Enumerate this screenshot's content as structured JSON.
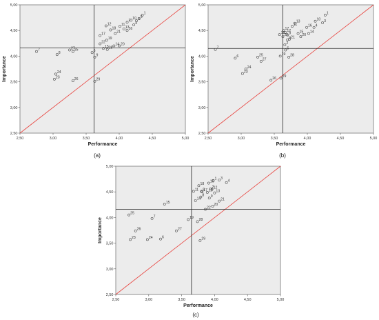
{
  "chart_data": [
    {
      "type": "scatter",
      "caption": "(a)",
      "xlabel": "Performance",
      "ylabel": "Importance",
      "xlim": [
        2.5,
        5.0
      ],
      "ylim": [
        2.5,
        5.0
      ],
      "x_ticks": [
        "2,50",
        "3,00",
        "3,50",
        "4,00",
        "4,50",
        "5,00"
      ],
      "y_ticks": [
        "2,50",
        "3,00",
        "3,50",
        "4,00",
        "4,50",
        "5,00"
      ],
      "crosshair": {
        "x": 3.62,
        "y": 4.16
      },
      "diagonal": true,
      "points": [
        {
          "label": "1",
          "x": 4.35,
          "y": 4.8
        },
        {
          "label": "2",
          "x": 4.12,
          "y": 4.66
        },
        {
          "label": "3",
          "x": 4.26,
          "y": 4.69
        },
        {
          "label": "4",
          "x": 4.22,
          "y": 4.61
        },
        {
          "label": "5",
          "x": 4.3,
          "y": 4.73
        },
        {
          "label": "6",
          "x": 3.59,
          "y": 4.07
        },
        {
          "label": "7",
          "x": 2.75,
          "y": 4.09
        },
        {
          "label": "8",
          "x": 3.06,
          "y": 4.03
        },
        {
          "label": "9",
          "x": 3.63,
          "y": 3.98
        },
        {
          "label": "10",
          "x": 4.18,
          "y": 4.7
        },
        {
          "label": "11",
          "x": 4.01,
          "y": 4.58
        },
        {
          "label": "12",
          "x": 3.8,
          "y": 4.59
        },
        {
          "label": "13",
          "x": 4.07,
          "y": 4.53
        },
        {
          "label": "14",
          "x": 3.92,
          "y": 4.2
        },
        {
          "label": "15",
          "x": 3.76,
          "y": 4.15
        },
        {
          "label": "16",
          "x": 4.12,
          "y": 4.5
        },
        {
          "label": "17",
          "x": 3.71,
          "y": 4.4
        },
        {
          "label": "18",
          "x": 3.87,
          "y": 4.51
        },
        {
          "label": "19",
          "x": 3.81,
          "y": 4.31
        },
        {
          "label": "20",
          "x": 4.0,
          "y": 4.2
        },
        {
          "label": "21",
          "x": 3.94,
          "y": 4.44
        },
        {
          "label": "22",
          "x": 3.71,
          "y": 4.24
        },
        {
          "label": "23",
          "x": 3.02,
          "y": 3.55
        },
        {
          "label": "24",
          "x": 3.04,
          "y": 3.65
        },
        {
          "label": "25",
          "x": 3.3,
          "y": 4.09
        },
        {
          "label": "26",
          "x": 3.3,
          "y": 3.52
        },
        {
          "label": "27",
          "x": 3.25,
          "y": 4.12
        },
        {
          "label": "28",
          "x": 3.82,
          "y": 4.13
        },
        {
          "label": "29",
          "x": 3.63,
          "y": 3.51
        }
      ]
    },
    {
      "type": "scatter",
      "caption": "(b)",
      "xlabel": "Performance",
      "ylabel": "Importance",
      "xlim": [
        2.5,
        5.0
      ],
      "ylim": [
        2.5,
        5.0
      ],
      "x_ticks": [
        "2,50",
        "3,00",
        "3,50",
        "4,00",
        "4,50",
        "5,00"
      ],
      "y_ticks": [
        "2,50",
        "3,00",
        "3,50",
        "4,00",
        "4,50",
        "5,00"
      ],
      "crosshair": {
        "x": 3.63,
        "y": 4.15
      },
      "diagonal": true,
      "points": [
        {
          "label": "1",
          "x": 4.27,
          "y": 4.8
        },
        {
          "label": "2",
          "x": 3.66,
          "y": 4.22
        },
        {
          "label": "3",
          "x": 4.23,
          "y": 4.65
        },
        {
          "label": "4",
          "x": 4.1,
          "y": 4.56
        },
        {
          "label": "5",
          "x": 3.67,
          "y": 4.12
        },
        {
          "label": "6",
          "x": 2.91,
          "y": 3.96
        },
        {
          "label": "7",
          "x": 2.61,
          "y": 4.13
        },
        {
          "label": "8",
          "x": 3.7,
          "y": 4.41
        },
        {
          "label": "9",
          "x": 3.7,
          "y": 4.32
        },
        {
          "label": "10",
          "x": 4.12,
          "y": 4.68
        },
        {
          "label": "11",
          "x": 3.77,
          "y": 4.58
        },
        {
          "label": "12",
          "x": 3.67,
          "y": 4.46
        },
        {
          "label": "13",
          "x": 3.81,
          "y": 4.64
        },
        {
          "label": "14",
          "x": 4.02,
          "y": 4.44
        },
        {
          "label": "15",
          "x": 3.86,
          "y": 4.44
        },
        {
          "label": "16",
          "x": 3.99,
          "y": 4.56
        },
        {
          "label": "17",
          "x": 3.64,
          "y": 4.5
        },
        {
          "label": "18",
          "x": 3.58,
          "y": 4.42
        },
        {
          "label": "19",
          "x": 3.59,
          "y": 4.0
        },
        {
          "label": "20",
          "x": 3.9,
          "y": 4.38
        },
        {
          "label": "21",
          "x": 3.73,
          "y": 4.33
        },
        {
          "label": "22",
          "x": 3.63,
          "y": 4.38
        },
        {
          "label": "23",
          "x": 3.02,
          "y": 3.66
        },
        {
          "label": "24",
          "x": 3.07,
          "y": 3.75
        },
        {
          "label": "25",
          "x": 3.25,
          "y": 3.98
        },
        {
          "label": "26",
          "x": 3.45,
          "y": 3.53
        },
        {
          "label": "27",
          "x": 3.3,
          "y": 3.9
        },
        {
          "label": "28",
          "x": 3.72,
          "y": 3.98
        },
        {
          "label": "29",
          "x": 3.6,
          "y": 3.57
        }
      ]
    },
    {
      "type": "scatter",
      "caption": "(c)",
      "xlabel": "Performance",
      "ylabel": "Importance",
      "xlim": [
        2.5,
        5.0
      ],
      "ylim": [
        2.5,
        5.0
      ],
      "x_ticks": [
        "2,50",
        "3,00",
        "3,50",
        "4,00",
        "4,50",
        "5,00"
      ],
      "y_ticks": [
        "2,50",
        "3,00",
        "3,50",
        "4,00",
        "4,50",
        "5,00"
      ],
      "crosshair": {
        "x": 3.65,
        "y": 4.16
      },
      "diagonal": true,
      "points": [
        {
          "label": "1",
          "x": 3.98,
          "y": 4.72
        },
        {
          "label": "2",
          "x": 3.94,
          "y": 4.56
        },
        {
          "label": "3",
          "x": 4.07,
          "y": 4.73
        },
        {
          "label": "4",
          "x": 4.18,
          "y": 4.68
        },
        {
          "label": "5",
          "x": 3.8,
          "y": 4.51
        },
        {
          "label": "6",
          "x": 3.18,
          "y": 3.58
        },
        {
          "label": "7",
          "x": 3.05,
          "y": 3.98
        },
        {
          "label": "8",
          "x": 3.79,
          "y": 4.4
        },
        {
          "label": "9",
          "x": 3.92,
          "y": 4.38
        },
        {
          "label": "10",
          "x": 3.89,
          "y": 4.49
        },
        {
          "label": "11",
          "x": 3.68,
          "y": 4.51
        },
        {
          "label": "12",
          "x": 3.96,
          "y": 4.55
        },
        {
          "label": "13",
          "x": 4.0,
          "y": 4.48
        },
        {
          "label": "14",
          "x": 3.71,
          "y": 4.33
        },
        {
          "label": "15",
          "x": 3.24,
          "y": 4.26
        },
        {
          "label": "16",
          "x": 3.91,
          "y": 4.67
        },
        {
          "label": "17",
          "x": 3.81,
          "y": 4.5
        },
        {
          "label": "18",
          "x": 3.76,
          "y": 4.62
        },
        {
          "label": "19",
          "x": 3.6,
          "y": 3.96
        },
        {
          "label": "20",
          "x": 3.97,
          "y": 4.22
        },
        {
          "label": "21",
          "x": 4.07,
          "y": 4.32
        },
        {
          "label": "22",
          "x": 3.86,
          "y": 4.16
        },
        {
          "label": "23",
          "x": 2.72,
          "y": 3.57
        },
        {
          "label": "24",
          "x": 2.98,
          "y": 3.57
        },
        {
          "label": "25",
          "x": 2.7,
          "y": 4.05
        },
        {
          "label": "26",
          "x": 2.8,
          "y": 3.74
        },
        {
          "label": "27",
          "x": 3.42,
          "y": 3.74
        },
        {
          "label": "28",
          "x": 3.74,
          "y": 3.92
        },
        {
          "label": "29",
          "x": 3.78,
          "y": 3.55
        }
      ]
    }
  ]
}
